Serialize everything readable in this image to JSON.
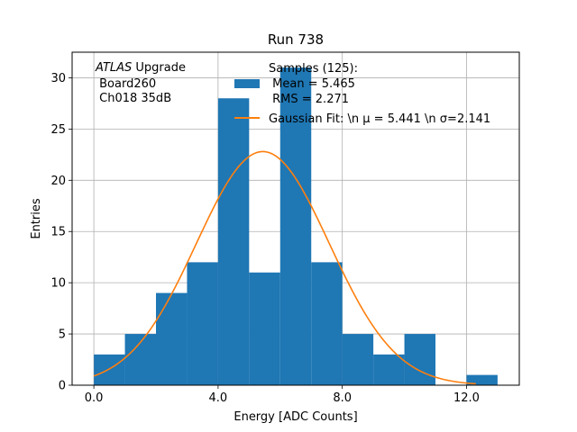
{
  "chart_data": {
    "type": "bar",
    "title": "Run 738",
    "xlabel": "Energy [ADC Counts]",
    "ylabel": "Entries",
    "xlim": [
      -0.7,
      13.7
    ],
    "ylim": [
      0,
      32.5
    ],
    "grid": true,
    "xticks": [
      0,
      4,
      8,
      12
    ],
    "xtick_labels": [
      "0.0",
      "4.0",
      "8.0",
      "12.0"
    ],
    "yticks": [
      0,
      5,
      10,
      15,
      20,
      25,
      30
    ],
    "ytick_labels": [
      "0",
      "5",
      "10",
      "15",
      "20",
      "25",
      "30"
    ],
    "histogram": {
      "bin_edges": [
        0,
        1,
        2,
        3,
        4,
        5,
        6,
        7,
        8,
        9,
        10,
        11,
        12,
        13
      ],
      "counts": [
        3,
        5,
        9,
        12,
        28,
        11,
        31,
        12,
        5,
        3,
        5,
        0,
        1
      ],
      "color": "#1f77b4"
    },
    "fit": {
      "type": "gaussian",
      "amplitude": 22.8,
      "mu": 5.441,
      "sigma": 2.141,
      "x_range": [
        0,
        12.3
      ],
      "color": "#ff7f0e"
    },
    "legend": {
      "placement": "top-right",
      "entries": [
        {
          "lines": [
            "Samples (125):",
            " Mean = 5.465",
            " RMS = 2.271"
          ]
        },
        {
          "lines": [
            "Gaussian Fit: \\n μ = 5.441 \\n σ=2.141"
          ]
        }
      ]
    },
    "annotation": {
      "italic": "ATLAS",
      "rest": " Upgrade",
      "line2": " Board260",
      "line3": " Ch018 35dB"
    }
  }
}
